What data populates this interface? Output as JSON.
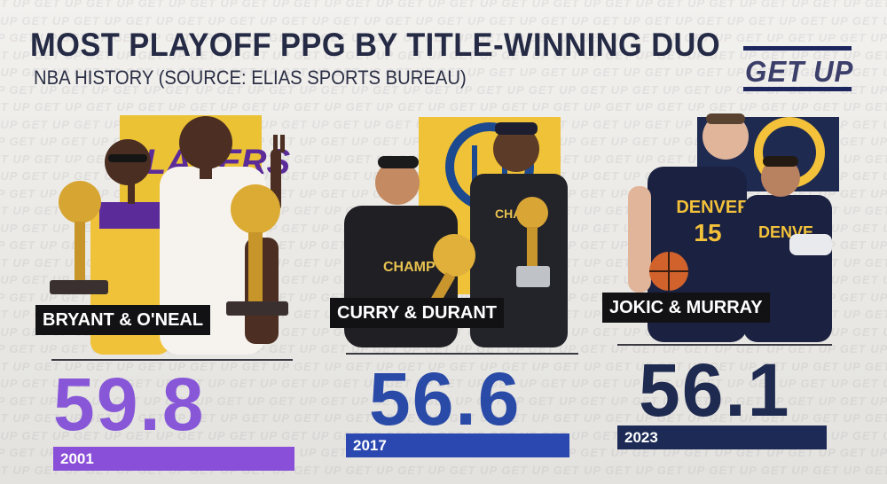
{
  "graphic": {
    "title": "MOST PLAYOFF PPG BY TITLE-WINNING DUO",
    "subtitle": "NBA HISTORY (SOURCE: ELIAS SPORTS BUREAU)",
    "logo": "GET UP",
    "watermark": "GET UP"
  },
  "duos": [
    {
      "name": "BRYANT & O'NEAL",
      "ppg": "59.8",
      "year": "2001",
      "ppg_color": "#8757d8",
      "bar_color": "#8a4fd8",
      "team_color": "#ecc235",
      "team_text": "LAKERS",
      "team_text_color": "#5b2b9a",
      "jersey_numbers": [],
      "jersey_texts": []
    },
    {
      "name": "CURRY & DURANT",
      "ppg": "56.6",
      "year": "2017",
      "ppg_color": "#2a4aa8",
      "bar_color": "#2b47b0",
      "team_color": "#f0c238",
      "team_text": "",
      "team_text_color": "#1d4a8f",
      "jersey_numbers": [],
      "jersey_texts": [
        "CHAMP",
        "CHAMP"
      ]
    },
    {
      "name": "JOKIC & MURRAY",
      "ppg": "56.1",
      "year": "2023",
      "ppg_color": "#1e2a4f",
      "bar_color": "#1c2a55",
      "team_color": "#1e2a4f",
      "team_text": "",
      "team_text_color": "#f3c13a",
      "jersey_numbers": [
        "15"
      ],
      "jersey_texts": [
        "DENVER",
        "DENVE"
      ]
    }
  ]
}
